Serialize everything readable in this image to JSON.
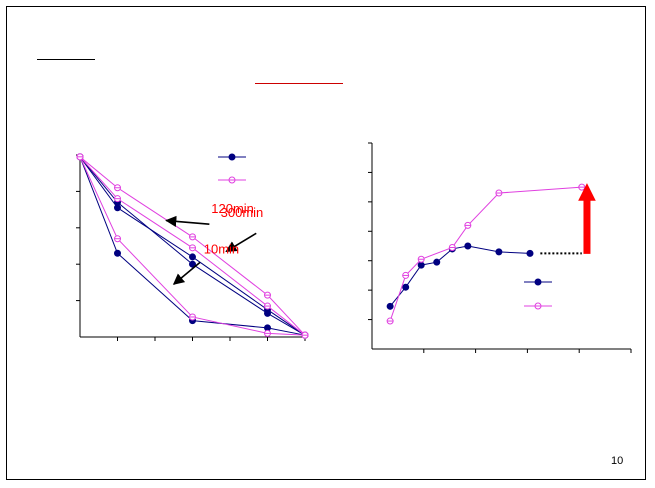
{
  "slide": {
    "page_number": "10"
  },
  "colors": {
    "navy": "#000080",
    "magenta": "#e040e0",
    "red": "#ff0000",
    "black": "#000000"
  },
  "chart_data": [
    {
      "type": "line",
      "xlim": [
        0,
        6
      ],
      "ylim": [
        0,
        5
      ],
      "x_ticks": [
        0,
        1,
        2,
        3,
        4,
        5,
        6
      ],
      "y_ticks": [
        0,
        1,
        2,
        3,
        4,
        5
      ],
      "series": [
        {
          "color": "navy",
          "marker": "filled-circle",
          "x": [
            0,
            1,
            3,
            5,
            6
          ],
          "y": [
            4.95,
            2.3,
            0.45,
            0.25,
            0.05
          ]
        },
        {
          "color": "navy",
          "marker": "filled-circle",
          "x": [
            0,
            1,
            3,
            5,
            6
          ],
          "y": [
            4.95,
            3.7,
            2.0,
            0.65,
            0.05
          ]
        },
        {
          "color": "navy",
          "marker": "filled-circle",
          "x": [
            0,
            1,
            3,
            5,
            6
          ],
          "y": [
            4.95,
            3.55,
            2.2,
            0.75,
            0.05
          ]
        },
        {
          "color": "magenta",
          "marker": "open-circle",
          "x": [
            0,
            1,
            3,
            5,
            6
          ],
          "y": [
            4.95,
            2.7,
            0.55,
            0.1,
            0.05
          ]
        },
        {
          "color": "magenta",
          "marker": "open-circle",
          "x": [
            0,
            1,
            3,
            5,
            6
          ],
          "y": [
            4.95,
            3.8,
            2.45,
            0.85,
            0.05
          ]
        },
        {
          "color": "magenta",
          "marker": "open-circle",
          "x": [
            0,
            1,
            3,
            5,
            6
          ],
          "y": [
            4.95,
            4.1,
            2.75,
            1.15,
            0.05
          ]
        }
      ],
      "legend": {
        "position": "top-right",
        "markers": [
          "filled-circle",
          "open-circle"
        ]
      },
      "annotations": [
        {
          "text": "120min",
          "color": "red",
          "x": 3.5,
          "y": 3.4
        },
        {
          "text": "300min",
          "color": "red",
          "x": 3.75,
          "y": 3.3
        },
        {
          "text": "10min",
          "color": "red",
          "x": 3.3,
          "y": 2.3
        }
      ],
      "arrows": [
        {
          "from": [
            3.45,
            3.1
          ],
          "to": [
            2.3,
            3.2
          ]
        },
        {
          "from": [
            4.7,
            2.85
          ],
          "to": [
            3.9,
            2.35
          ]
        },
        {
          "from": [
            3.2,
            2.05
          ],
          "to": [
            2.5,
            1.45
          ]
        }
      ]
    },
    {
      "type": "line",
      "xlim": [
        0,
        5
      ],
      "ylim": [
        0,
        7
      ],
      "x_ticks": [
        0,
        1,
        2,
        3,
        4,
        5
      ],
      "y_ticks": [
        0,
        1,
        2,
        3,
        4,
        5,
        6,
        7
      ],
      "series": [
        {
          "color": "navy",
          "marker": "filled-circle",
          "x": [
            0.35,
            0.65,
            0.95,
            1.25,
            1.55,
            1.85,
            2.45,
            3.05
          ],
          "y": [
            1.45,
            2.1,
            2.85,
            2.95,
            3.4,
            3.5,
            3.3,
            3.25
          ]
        },
        {
          "color": "magenta",
          "marker": "open-circle",
          "x": [
            0.35,
            0.65,
            0.95,
            1.55,
            1.85,
            2.45,
            4.05
          ],
          "y": [
            0.95,
            2.5,
            3.05,
            3.45,
            4.2,
            5.3,
            5.5
          ]
        }
      ],
      "legend": {
        "position": "bottom-right",
        "markers": [
          "filled-circle",
          "open-circle"
        ]
      },
      "extension": {
        "style": "dotted",
        "from_x": 3.25,
        "to_x": 4.05,
        "y": 3.25
      },
      "arrow": {
        "color": "red",
        "x": 4.15,
        "from_y": 3.25,
        "to_y": 5.6
      }
    }
  ]
}
